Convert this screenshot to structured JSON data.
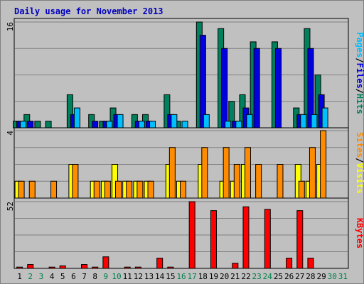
{
  "chart_data": {
    "type": "bar",
    "title": "Daily usage for November 2013",
    "title_color": "#0000c0",
    "days": [
      "1",
      "2",
      "3",
      "4",
      "5",
      "6",
      "7",
      "8",
      "9",
      "10",
      "11",
      "12",
      "13",
      "14",
      "15",
      "16",
      "17",
      "18",
      "19",
      "20",
      "21",
      "22",
      "23",
      "24",
      "25",
      "26",
      "27",
      "28",
      "29",
      "30",
      "31"
    ],
    "weekend_days": [
      2,
      3,
      9,
      10,
      16,
      17,
      23,
      24,
      30,
      31
    ],
    "weekend_color": "#00804a",
    "panels": [
      {
        "id": "hits",
        "ymax_label": "16",
        "ymax": 16,
        "grid": true,
        "series": [
          {
            "name": "Hits",
            "color": "#00805c",
            "values": [
              1,
              2,
              1,
              1,
              0,
              5,
              0,
              2,
              1,
              3,
              0,
              2,
              2,
              0,
              5,
              1,
              0,
              16,
              0,
              15,
              4,
              5,
              13,
              0,
              13,
              0,
              3,
              15,
              8,
              0,
              0
            ]
          },
          {
            "name": "Files",
            "color": "#0000e0",
            "values": [
              1,
              1,
              0,
              0,
              0,
              2,
              0,
              1,
              1,
              2,
              0,
              1,
              1,
              0,
              2,
              0,
              0,
              14,
              0,
              12,
              1,
              3,
              12,
              0,
              12,
              0,
              2,
              12,
              5,
              0,
              0
            ]
          },
          {
            "name": "Pages",
            "color": "#00bfff",
            "values": [
              1,
              0,
              0,
              0,
              0,
              3,
              0,
              0,
              1,
              2,
              0,
              1,
              1,
              0,
              2,
              1,
              0,
              2,
              0,
              1,
              1,
              2,
              0,
              0,
              0,
              0,
              2,
              2,
              3,
              0,
              0
            ]
          }
        ],
        "legend": [
          {
            "text": "Pages",
            "color": "#00bfff"
          },
          {
            "text": "/",
            "color": "#000000"
          },
          {
            "text": "Files",
            "color": "#0000e0"
          },
          {
            "text": "/",
            "color": "#000000"
          },
          {
            "text": "Hits",
            "color": "#00805c"
          }
        ]
      },
      {
        "id": "visits",
        "ymax_label": "4",
        "ymax": 4,
        "grid": true,
        "series": [
          {
            "name": "Visits",
            "color": "#ffff00",
            "values": [
              1,
              0,
              0,
              0,
              0,
              2,
              0,
              1,
              1,
              2,
              1,
              1,
              1,
              0,
              2,
              1,
              0,
              2,
              0,
              1,
              1,
              2,
              0,
              0,
              0,
              0,
              2,
              1,
              2,
              0,
              0
            ]
          },
          {
            "name": "Sites",
            "color": "#ff8c00",
            "values": [
              1,
              1,
              0,
              1,
              0,
              2,
              0,
              1,
              1,
              1,
              1,
              1,
              1,
              0,
              3,
              1,
              0,
              3,
              0,
              3,
              2,
              3,
              2,
              0,
              2,
              0,
              1,
              3,
              4,
              0,
              0
            ]
          }
        ],
        "legend": [
          {
            "text": "Sites",
            "color": "#ff8c00"
          },
          {
            "text": "/",
            "color": "#000000"
          },
          {
            "text": "Visits",
            "color": "#ffff00"
          }
        ]
      },
      {
        "id": "kbytes",
        "ymax_label": "52",
        "ymax": 52,
        "grid": true,
        "series": [
          {
            "name": "KBytes",
            "color": "#ff0000",
            "values": [
              1,
              3,
              0,
              1,
              2,
              0,
              3,
              1,
              9,
              0,
              1,
              1,
              0,
              8,
              1,
              0,
              52,
              0,
              45,
              0,
              4,
              48,
              0,
              46,
              0,
              8,
              45,
              8,
              0,
              0,
              0
            ]
          }
        ],
        "legend": [
          {
            "text": "KBytes",
            "color": "#ff0000"
          }
        ]
      }
    ]
  }
}
